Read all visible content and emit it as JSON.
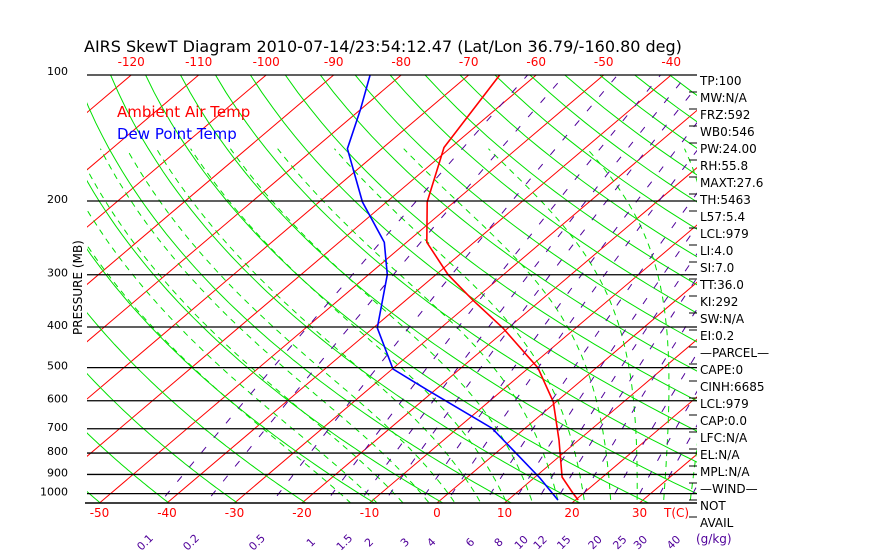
{
  "chart_data": {
    "type": "line",
    "title": "AIRS SkewT Diagram 2010-07-14/23:54:12.47 (Lat/Lon 36.79/-160.80 deg)",
    "ylabel": "PRESSURE (MB)",
    "xlabel": "T(C)",
    "mixing_ratio_label": "(g/kg)",
    "ylim": [
      1070,
      100
    ],
    "y_scale": "log",
    "pressure_ticks": [
      "100",
      "200",
      "300",
      "400",
      "500",
      "600",
      "700",
      "800",
      "900",
      "1000"
    ],
    "bottom_temp_ticks": [
      "-50",
      "-40",
      "-30",
      "-20",
      "-10",
      "0",
      "10",
      "20",
      "30"
    ],
    "top_temp_ticks": [
      "-120",
      "-110",
      "-100",
      "-90",
      "-80",
      "-70",
      "-60",
      "-50",
      "-40"
    ],
    "mixing_ratio_ticks": [
      "0.1",
      "0.2",
      "0.5",
      "1",
      "1.5",
      "2",
      "3",
      "4",
      "6",
      "8",
      "10",
      "12",
      "15",
      "20",
      "25",
      "30",
      "40"
    ],
    "legend": [
      {
        "label": "Ambient Air Temp",
        "color": "#ff0000"
      },
      {
        "label": "Dew Point Temp",
        "color": "#0000ff"
      }
    ],
    "series": [
      {
        "name": "Ambient Air Temp",
        "color": "#ff0000",
        "pressure": [
          100,
          149,
          201,
          251,
          300,
          345,
          402,
          501,
          604,
          745,
          913,
          997,
          1036
        ],
        "temperature": [
          -65.4,
          -61.0,
          -54.0,
          -47.0,
          -38.2,
          -30.1,
          -20.8,
          -8.6,
          -0.4,
          7.1,
          14.0,
          18.4,
          20.4
        ]
      },
      {
        "name": "Dew Point Temp",
        "color": "#0000ff",
        "pressure": [
          100,
          121,
          150,
          201,
          251,
          300,
          402,
          504,
          566,
          698,
          918,
          1036
        ],
        "temperature": [
          -84.6,
          -80.0,
          -75.1,
          -63.6,
          -53.3,
          -47.2,
          -39.4,
          -29.9,
          -21.1,
          -4.9,
          10.9,
          17.4
        ]
      }
    ],
    "colors": {
      "isotherm": "#ff0000",
      "dry_adiabat": "#00e000",
      "moist_adiabat": "#00e000",
      "mixing_ratio": "#50009a",
      "isobar": "#000000"
    }
  },
  "stats": [
    "TP:100",
    "MW:N/A",
    "FRZ:592",
    "WB0:546",
    "PW:24.00",
    "RH:55.8",
    "MAXT:27.6",
    "TH:5463",
    "L57:5.4",
    "LCL:979",
    "LI:4.0",
    "SI:7.0",
    "TT:36.0",
    "KI:292",
    "SW:N/A",
    "EI:0.2",
    "—PARCEL—",
    "CAPE:0",
    "CINH:6685",
    "LCL:979",
    "CAP:0.0",
    "LFC:N/A",
    "EL:N/A",
    "MPL:N/A",
    "—WIND—",
    "NOT",
    "AVAIL"
  ]
}
